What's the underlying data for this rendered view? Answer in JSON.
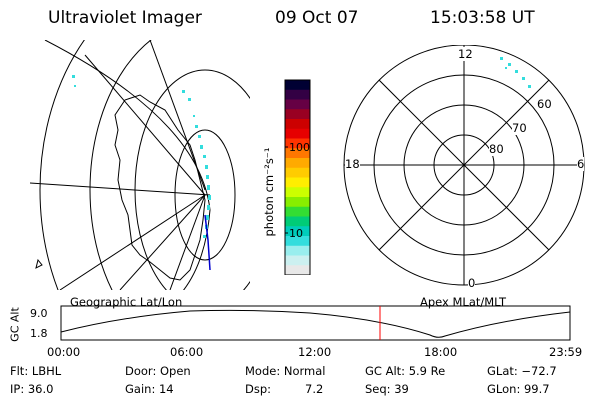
{
  "header": {
    "instrument": "Ultraviolet Imager",
    "date": "09 Oct 07",
    "time": "15:03:58 UT"
  },
  "colorbar": {
    "unit_label": "photon cm⁻²s⁻¹",
    "ticks": [
      "100",
      "10"
    ],
    "scale": "log",
    "colors": [
      "#000033",
      "#330044",
      "#660044",
      "#990022",
      "#cc0000",
      "#e60000",
      "#ff3300",
      "#ff7700",
      "#ffaa00",
      "#ffcc00",
      "#ffee00",
      "#ccff00",
      "#88ee00",
      "#33dd33",
      "#00cc77",
      "#00ccbb",
      "#33dddd",
      "#99eeee",
      "#ccf0f0",
      "#e8e8e8"
    ]
  },
  "left_map": {
    "label": "Geographic Lat/Lon"
  },
  "polar_plot": {
    "label": "Apex MLat/MLT",
    "mlt_labels": {
      "top": "12",
      "right": "6",
      "bottom": "0",
      "left": "18"
    },
    "mlat_labels": [
      "60",
      "70",
      "80"
    ]
  },
  "altitude_plot": {
    "axis_label": "GC Alt",
    "y_ticks": [
      "9.0",
      "1.8"
    ],
    "x_ticks": [
      "00:00",
      "06:00",
      "12:00",
      "18:00",
      "23:59"
    ],
    "marker_color": "#ff0000"
  },
  "status": {
    "row1": {
      "flt": "Flt: LBHL",
      "door": "Door: Open",
      "mode": "Mode: Normal",
      "gcalt": "GC Alt: 5.9 Re",
      "glat": "GLat: −72.7"
    },
    "row2": {
      "ip": "IP: 36.0",
      "gain": "Gain: 14",
      "dsp_label": "Dsp:",
      "dsp_value": "7.2",
      "seq": "Seq: 39",
      "glon": "GLon:  99.7"
    }
  }
}
